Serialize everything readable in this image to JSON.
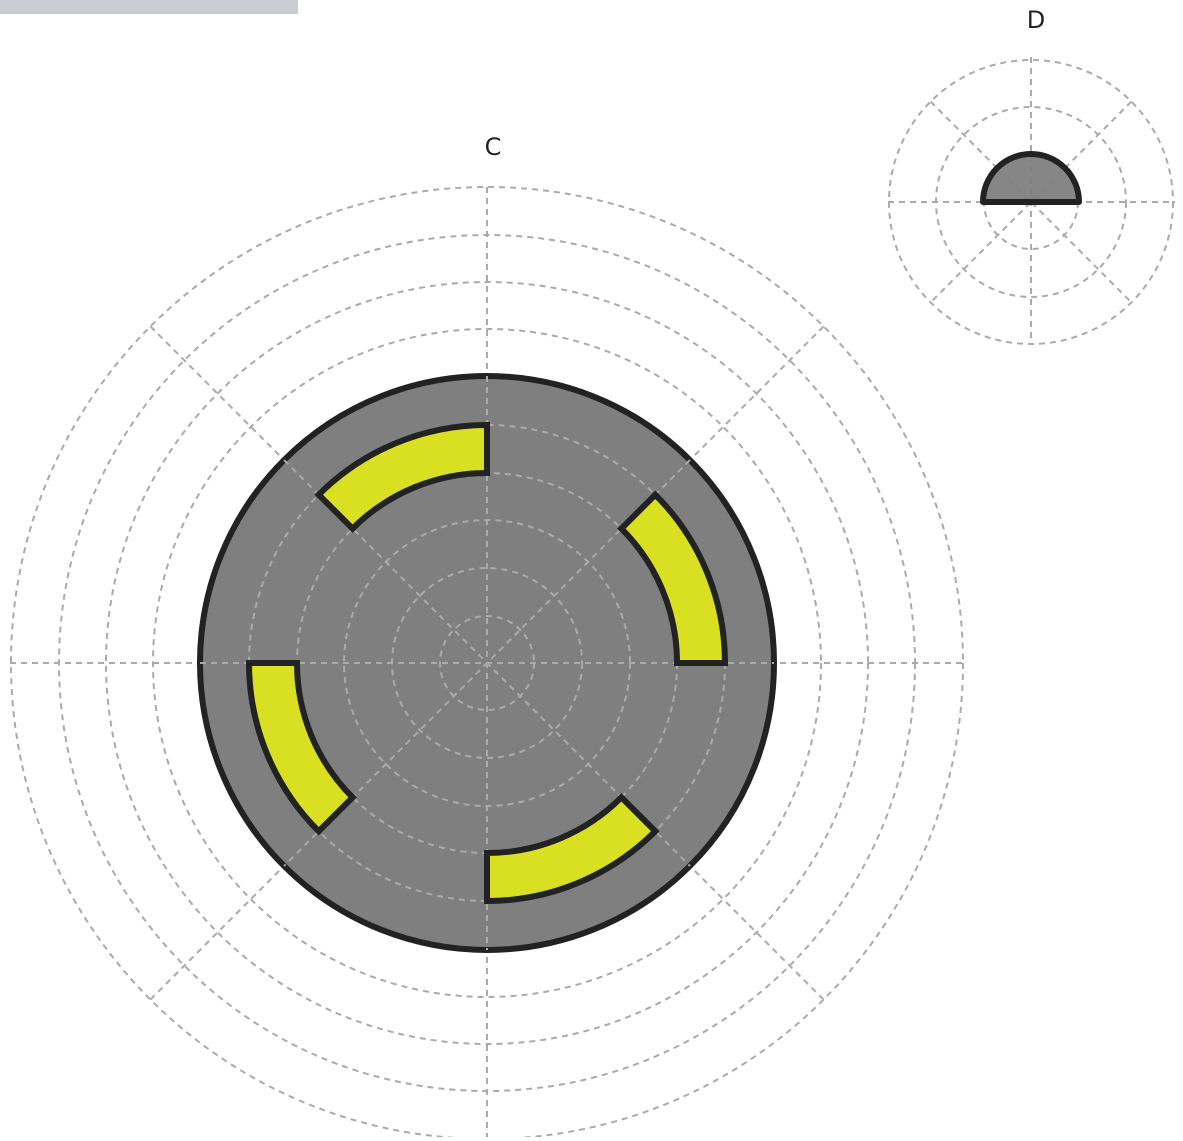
{
  "connectors": [
    {
      "label": "C"
    },
    {
      "label": "D"
    }
  ]
}
